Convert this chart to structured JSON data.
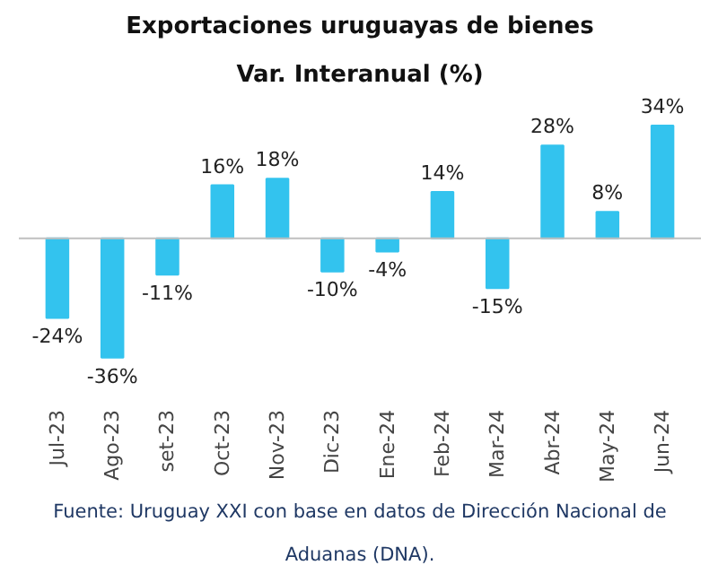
{
  "chart_data": {
    "type": "bar",
    "title": "Exportaciones uruguayas de bienes",
    "subtitle": "Var. Interanual (%)",
    "categories": [
      "Jul-23",
      "Ago-23",
      "set-23",
      "Oct-23",
      "Nov-23",
      "Dic-23",
      "Ene-24",
      "Feb-24",
      "Mar-24",
      "Abr-24",
      "May-24",
      "Jun-24"
    ],
    "values": [
      -24,
      -36,
      -11,
      16,
      18,
      -10,
      -4,
      14,
      -15,
      28,
      8,
      34
    ],
    "value_labels": [
      "-24%",
      "-36%",
      "-11%",
      "16%",
      "18%",
      "-10%",
      "-4%",
      "14%",
      "-15%",
      "28%",
      "8%",
      "34%"
    ],
    "color": "#33c3ee",
    "grid": false,
    "annotations": [
      "Fuente: Uruguay XXI con base en datos de Dirección Nacional de Aduanas (DNA)."
    ]
  }
}
